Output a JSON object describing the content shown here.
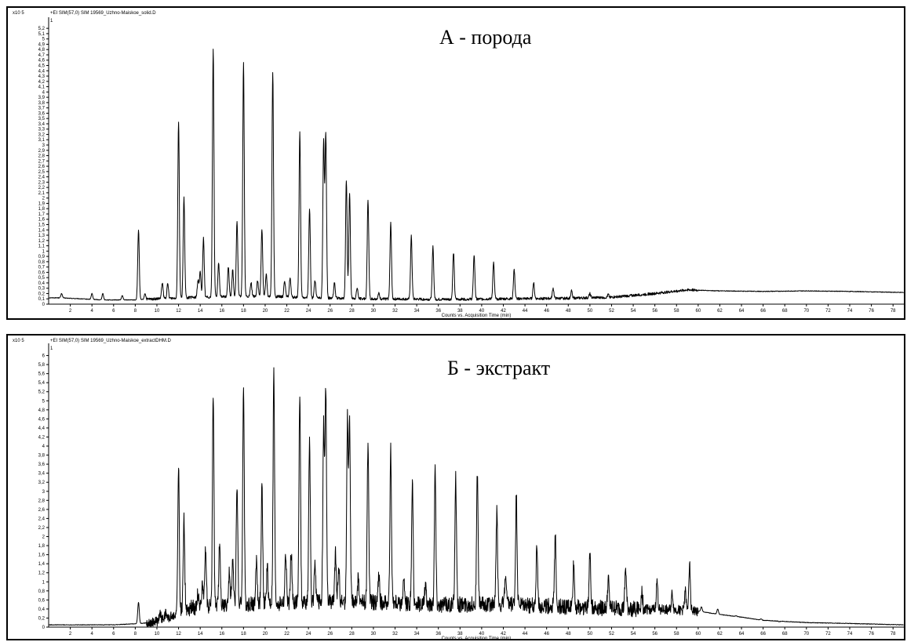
{
  "chart_data": [
    {
      "type": "line",
      "title": "А - порода",
      "header": "+EI SIM(57,0) SIM 19569_Uzhno-Maiskoe_solid.D",
      "y_multiplier": "x10 5",
      "trace_marker": "1",
      "xlabel": "Counts vs. Acquisition Time (min)",
      "xlim": [
        0,
        79
      ],
      "ylim": [
        0,
        5.35
      ],
      "x_ticks": [
        2,
        4,
        6,
        8,
        10,
        12,
        14,
        16,
        18,
        20,
        22,
        24,
        26,
        28,
        30,
        32,
        34,
        36,
        38,
        40,
        42,
        44,
        46,
        48,
        50,
        52,
        54,
        56,
        58,
        60,
        62,
        64,
        66,
        68,
        70,
        72,
        74,
        76,
        78
      ],
      "y_ticks": [
        0,
        0.1,
        0.2,
        0.3,
        0.4,
        0.5,
        0.6,
        0.7,
        0.8,
        0.9,
        1,
        1.1,
        1.2,
        1.3,
        1.4,
        1.5,
        1.6,
        1.7,
        1.8,
        1.9,
        2,
        2.1,
        2.2,
        2.3,
        2.4,
        2.5,
        2.6,
        2.7,
        2.8,
        2.9,
        3,
        3.1,
        3.2,
        3.3,
        3.4,
        3.5,
        3.6,
        3.7,
        3.8,
        3.9,
        4,
        4.1,
        4.2,
        4.3,
        4.4,
        4.5,
        4.6,
        4.7,
        4.8,
        4.9,
        5,
        5.1,
        5.2
      ],
      "y_tick_labels": [
        "0",
        "0,1",
        "0,2",
        "0,3",
        "0,4",
        "0,5",
        "0,6",
        "0,7",
        "0,8",
        "0,9",
        "1",
        "1,1",
        "1,2",
        "1,3",
        "1,4",
        "1,5",
        "1,6",
        "1,7",
        "1,8",
        "1,9",
        "2",
        "2,1",
        "2,2",
        "2,3",
        "2,4",
        "2,5",
        "2,6",
        "2,7",
        "2,8",
        "2,9",
        "3",
        "3,1",
        "3,2",
        "3,3",
        "3,4",
        "3,5",
        "3,6",
        "3,7",
        "3,8",
        "3,9",
        "4",
        "4,1",
        "4,2",
        "4,3",
        "4,4",
        "4,5",
        "4,6",
        "4,7",
        "4,8",
        "4,9",
        "5",
        "5,1",
        "5,2"
      ],
      "baseline": [
        [
          0,
          0.12
        ],
        [
          1,
          0.12
        ],
        [
          5,
          0.08
        ],
        [
          8,
          0.08
        ],
        [
          12,
          0.12
        ],
        [
          16,
          0.14
        ],
        [
          20,
          0.15
        ],
        [
          24,
          0.12
        ],
        [
          30,
          0.1
        ],
        [
          36,
          0.09
        ],
        [
          42,
          0.1
        ],
        [
          48,
          0.11
        ],
        [
          52,
          0.13
        ],
        [
          56,
          0.2
        ],
        [
          59,
          0.27
        ],
        [
          62,
          0.25
        ],
        [
          66,
          0.24
        ],
        [
          70,
          0.25
        ],
        [
          74,
          0.24
        ],
        [
          79,
          0.22
        ]
      ],
      "peaks": [
        {
          "x": 1.2,
          "y": 0.2
        },
        {
          "x": 4.0,
          "y": 0.2
        },
        {
          "x": 5.0,
          "y": 0.2
        },
        {
          "x": 6.8,
          "y": 0.16
        },
        {
          "x": 8.3,
          "y": 1.4
        },
        {
          "x": 8.9,
          "y": 0.2
        },
        {
          "x": 10.5,
          "y": 0.4
        },
        {
          "x": 11.0,
          "y": 0.38
        },
        {
          "x": 12.0,
          "y": 3.45
        },
        {
          "x": 12.5,
          "y": 2.0
        },
        {
          "x": 13.8,
          "y": 0.45
        },
        {
          "x": 14.3,
          "y": 1.25
        },
        {
          "x": 14.0,
          "y": 0.6
        },
        {
          "x": 15.2,
          "y": 4.8
        },
        {
          "x": 15.7,
          "y": 0.78
        },
        {
          "x": 16.6,
          "y": 0.7
        },
        {
          "x": 17.0,
          "y": 0.65
        },
        {
          "x": 17.4,
          "y": 1.55
        },
        {
          "x": 18.0,
          "y": 4.55
        },
        {
          "x": 18.7,
          "y": 0.4
        },
        {
          "x": 19.3,
          "y": 0.45
        },
        {
          "x": 19.7,
          "y": 1.42
        },
        {
          "x": 20.1,
          "y": 0.55
        },
        {
          "x": 20.7,
          "y": 4.38
        },
        {
          "x": 21.8,
          "y": 0.45
        },
        {
          "x": 22.3,
          "y": 0.5
        },
        {
          "x": 23.2,
          "y": 3.25
        },
        {
          "x": 24.1,
          "y": 1.8
        },
        {
          "x": 24.6,
          "y": 0.45
        },
        {
          "x": 25.4,
          "y": 3.05
        },
        {
          "x": 25.6,
          "y": 3.2
        },
        {
          "x": 26.4,
          "y": 0.4
        },
        {
          "x": 27.5,
          "y": 2.35
        },
        {
          "x": 27.8,
          "y": 2.1
        },
        {
          "x": 28.5,
          "y": 0.3
        },
        {
          "x": 29.5,
          "y": 1.97
        },
        {
          "x": 30.5,
          "y": 0.2
        },
        {
          "x": 31.6,
          "y": 1.53
        },
        {
          "x": 33.5,
          "y": 1.28
        },
        {
          "x": 35.5,
          "y": 1.08
        },
        {
          "x": 37.4,
          "y": 0.97
        },
        {
          "x": 39.3,
          "y": 0.93
        },
        {
          "x": 41.1,
          "y": 0.78
        },
        {
          "x": 43.0,
          "y": 0.65
        },
        {
          "x": 44.8,
          "y": 0.4
        },
        {
          "x": 46.6,
          "y": 0.3
        },
        {
          "x": 48.3,
          "y": 0.25
        },
        {
          "x": 50.0,
          "y": 0.2
        },
        {
          "x": 51.7,
          "y": 0.18
        }
      ]
    },
    {
      "type": "line",
      "title": "Б - экстракт",
      "header": "+EI SIM(57,0) SIM 19569_Uzhno-Maiskoe_extractDHM.D",
      "y_multiplier": "x10 5",
      "trace_marker": "1",
      "xlabel": "Counts vs. Acquisition Time (min)",
      "xlim": [
        0,
        79
      ],
      "ylim": [
        0,
        6.2
      ],
      "x_ticks": [
        2,
        4,
        6,
        8,
        10,
        12,
        14,
        16,
        18,
        20,
        22,
        24,
        26,
        28,
        30,
        32,
        34,
        36,
        38,
        40,
        42,
        44,
        46,
        48,
        50,
        52,
        54,
        56,
        58,
        60,
        62,
        64,
        66,
        68,
        70,
        72,
        74,
        76,
        78
      ],
      "y_ticks": [
        0,
        0.2,
        0.4,
        0.6,
        0.8,
        1,
        1.2,
        1.4,
        1.6,
        1.8,
        2,
        2.2,
        2.4,
        2.6,
        2.8,
        3,
        3.2,
        3.4,
        3.6,
        3.8,
        4,
        4.2,
        4.4,
        4.6,
        4.8,
        5,
        5.2,
        5.4,
        5.6,
        5.8,
        6
      ],
      "y_tick_labels": [
        "0",
        "0,2",
        "0,4",
        "0,6",
        "0,8",
        "1",
        "1,2",
        "1,4",
        "1,6",
        "1,8",
        "2",
        "2,2",
        "2,4",
        "2,6",
        "2,8",
        "3",
        "3,2",
        "3,4",
        "3,6",
        "3,8",
        "4",
        "4,2",
        "4,4",
        "4,6",
        "4,8",
        "5",
        "5,2",
        "5,4",
        "5,6",
        "5,8",
        "6"
      ],
      "baseline": [
        [
          0,
          0.05
        ],
        [
          6,
          0.05
        ],
        [
          8.5,
          0.08
        ],
        [
          10,
          0.12
        ],
        [
          11.5,
          0.25
        ],
        [
          12.5,
          0.4
        ],
        [
          14,
          0.45
        ],
        [
          18,
          0.5
        ],
        [
          24,
          0.55
        ],
        [
          30,
          0.55
        ],
        [
          36,
          0.5
        ],
        [
          42,
          0.5
        ],
        [
          48,
          0.45
        ],
        [
          54,
          0.4
        ],
        [
          58,
          0.38
        ],
        [
          60,
          0.35
        ],
        [
          62,
          0.28
        ],
        [
          64,
          0.22
        ],
        [
          66,
          0.15
        ],
        [
          70,
          0.1
        ],
        [
          74,
          0.08
        ],
        [
          79,
          0.05
        ]
      ],
      "peaks": [
        {
          "x": 8.3,
          "y": 0.55
        },
        {
          "x": 10.3,
          "y": 0.3
        },
        {
          "x": 10.8,
          "y": 0.3
        },
        {
          "x": 12.0,
          "y": 3.52
        },
        {
          "x": 12.5,
          "y": 2.35
        },
        {
          "x": 13.8,
          "y": 0.75
        },
        {
          "x": 14.2,
          "y": 1.0
        },
        {
          "x": 14.5,
          "y": 1.75
        },
        {
          "x": 15.2,
          "y": 5.1
        },
        {
          "x": 15.8,
          "y": 1.95
        },
        {
          "x": 16.7,
          "y": 1.2
        },
        {
          "x": 17.0,
          "y": 1.5
        },
        {
          "x": 17.4,
          "y": 3.2
        },
        {
          "x": 18.0,
          "y": 5.38
        },
        {
          "x": 19.2,
          "y": 1.45
        },
        {
          "x": 19.7,
          "y": 3.1
        },
        {
          "x": 20.2,
          "y": 1.3
        },
        {
          "x": 20.8,
          "y": 5.6
        },
        {
          "x": 21.9,
          "y": 1.6
        },
        {
          "x": 22.4,
          "y": 1.7
        },
        {
          "x": 23.2,
          "y": 5.25
        },
        {
          "x": 24.1,
          "y": 4.15
        },
        {
          "x": 24.6,
          "y": 1.5
        },
        {
          "x": 25.4,
          "y": 4.45
        },
        {
          "x": 25.6,
          "y": 5.27
        },
        {
          "x": 26.5,
          "y": 1.65
        },
        {
          "x": 26.8,
          "y": 1.3
        },
        {
          "x": 27.6,
          "y": 4.6
        },
        {
          "x": 27.8,
          "y": 4.47
        },
        {
          "x": 28.6,
          "y": 1.1
        },
        {
          "x": 29.5,
          "y": 4.13
        },
        {
          "x": 30.5,
          "y": 1.1
        },
        {
          "x": 31.6,
          "y": 3.93
        },
        {
          "x": 32.8,
          "y": 1.0
        },
        {
          "x": 33.6,
          "y": 3.18
        },
        {
          "x": 34.8,
          "y": 0.9
        },
        {
          "x": 35.7,
          "y": 3.5
        },
        {
          "x": 37.6,
          "y": 3.33
        },
        {
          "x": 39.6,
          "y": 3.38
        },
        {
          "x": 41.4,
          "y": 2.55
        },
        {
          "x": 42.2,
          "y": 1.15
        },
        {
          "x": 43.2,
          "y": 2.9
        },
        {
          "x": 45.1,
          "y": 1.77
        },
        {
          "x": 46.8,
          "y": 2.05
        },
        {
          "x": 48.5,
          "y": 1.37
        },
        {
          "x": 50.0,
          "y": 1.68
        },
        {
          "x": 51.7,
          "y": 1.05
        },
        {
          "x": 53.3,
          "y": 1.3
        },
        {
          "x": 54.8,
          "y": 0.8
        },
        {
          "x": 56.2,
          "y": 1.02
        },
        {
          "x": 57.6,
          "y": 0.75
        },
        {
          "x": 58.8,
          "y": 0.82
        },
        {
          "x": 59.2,
          "y": 1.4
        },
        {
          "x": 60.3,
          "y": 0.45
        },
        {
          "x": 61.8,
          "y": 0.4
        },
        {
          "x": 63.5,
          "y": 0.25
        },
        {
          "x": 65.8,
          "y": 0.18
        },
        {
          "x": 67.5,
          "y": 0.12
        }
      ]
    }
  ]
}
